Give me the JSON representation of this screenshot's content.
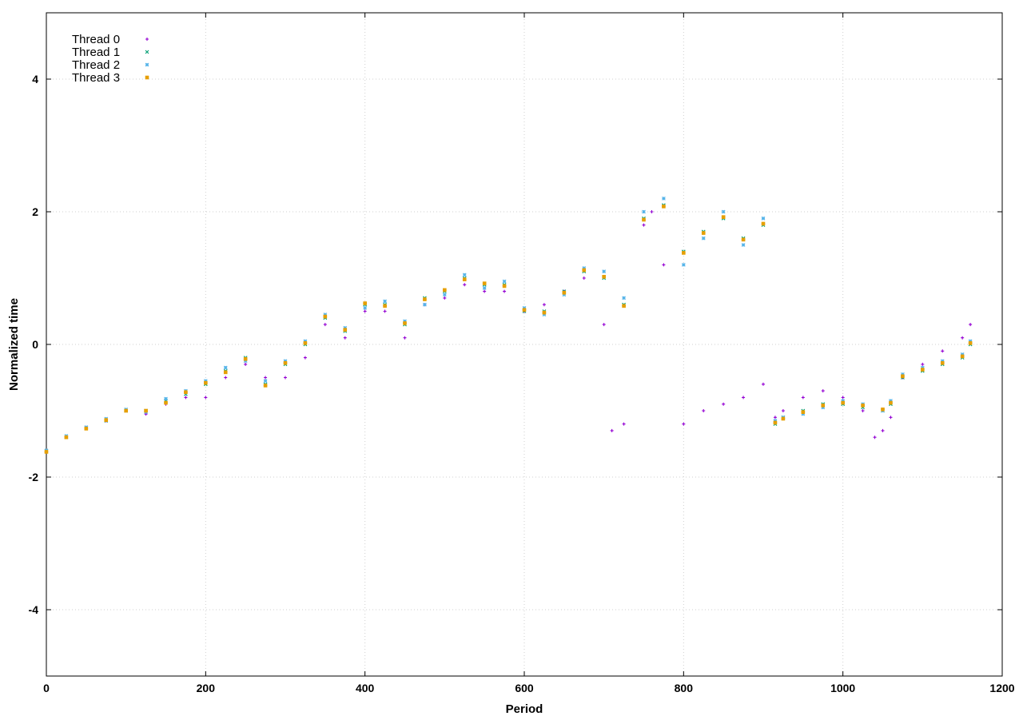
{
  "chart_data": {
    "type": "scatter",
    "xlabel": "Period",
    "ylabel": "Normalized time",
    "xlim": [
      0,
      1200
    ],
    "ylim": [
      -5,
      5
    ],
    "x_ticks": [
      0,
      200,
      400,
      600,
      800,
      1000,
      1200
    ],
    "y_ticks": [
      -4,
      -2,
      0,
      2,
      4
    ],
    "x_tick_labels": [
      "0",
      "200",
      "400",
      "600",
      "800",
      "1000",
      "1200"
    ],
    "y_tick_labels": [
      "-4",
      "-2",
      "0",
      "2",
      "4"
    ],
    "grid": true,
    "legend_position": "top-left",
    "series": [
      {
        "name": "Thread 0",
        "color": "#9400d3",
        "marker": "plus",
        "x": [
          0,
          25,
          50,
          75,
          100,
          125,
          150,
          175,
          200,
          225,
          250,
          275,
          300,
          325,
          350,
          375,
          400,
          425,
          450,
          475,
          500,
          525,
          550,
          575,
          600,
          625,
          650,
          675,
          700,
          710,
          725,
          750,
          760,
          775,
          800,
          825,
          850,
          875,
          900,
          915,
          925,
          950,
          975,
          1000,
          1025,
          1040,
          1050,
          1060,
          1075,
          1100,
          1125,
          1150,
          1160
        ],
        "y": [
          -1.6,
          -1.4,
          -1.25,
          -1.15,
          -1.0,
          -1.05,
          -0.9,
          -0.8,
          -0.8,
          -0.5,
          -0.3,
          -0.5,
          -0.5,
          -0.2,
          0.3,
          0.1,
          0.5,
          0.5,
          0.1,
          0.6,
          0.7,
          0.9,
          0.8,
          0.8,
          0.5,
          0.6,
          0.8,
          1.0,
          0.3,
          -1.3,
          -1.2,
          1.8,
          2.0,
          1.2,
          -1.2,
          -1.0,
          -0.9,
          -0.8,
          -0.6,
          -1.1,
          -1.0,
          -0.8,
          -0.7,
          -0.8,
          -1.0,
          -1.4,
          -1.3,
          -1.1,
          -0.5,
          -0.3,
          -0.1,
          0.1,
          0.3
        ]
      },
      {
        "name": "Thread 1",
        "color": "#009e73",
        "marker": "cross",
        "x": [
          0,
          25,
          50,
          75,
          100,
          125,
          150,
          175,
          200,
          225,
          250,
          275,
          300,
          325,
          350,
          375,
          400,
          425,
          450,
          475,
          500,
          525,
          550,
          575,
          600,
          625,
          650,
          675,
          700,
          725,
          750,
          775,
          800,
          825,
          850,
          875,
          900,
          915,
          925,
          950,
          975,
          1000,
          1025,
          1050,
          1060,
          1075,
          1100,
          1125,
          1150,
          1160
        ],
        "y": [
          -1.6,
          -1.4,
          -1.25,
          -1.15,
          -1.0,
          -1.0,
          -0.85,
          -0.75,
          -0.6,
          -0.4,
          -0.2,
          -0.6,
          -0.3,
          0.0,
          0.4,
          0.2,
          0.6,
          0.6,
          0.3,
          0.7,
          0.8,
          1.0,
          0.9,
          0.9,
          0.5,
          0.5,
          0.8,
          1.1,
          1.0,
          0.6,
          1.9,
          2.1,
          1.4,
          1.7,
          1.9,
          1.6,
          1.8,
          -1.2,
          -1.1,
          -1.0,
          -0.9,
          -0.9,
          -0.95,
          -1.0,
          -0.9,
          -0.5,
          -0.4,
          -0.3,
          -0.2,
          0.0
        ]
      },
      {
        "name": "Thread 2",
        "color": "#56b4e9",
        "marker": "asterisk",
        "x": [
          0,
          25,
          50,
          75,
          100,
          125,
          150,
          175,
          200,
          225,
          250,
          275,
          300,
          325,
          350,
          375,
          400,
          425,
          450,
          475,
          500,
          525,
          550,
          575,
          600,
          625,
          650,
          675,
          700,
          725,
          750,
          775,
          800,
          825,
          850,
          875,
          900,
          915,
          925,
          950,
          975,
          1000,
          1025,
          1050,
          1060,
          1075,
          1100,
          1125,
          1150,
          1160
        ],
        "y": [
          -1.6,
          -1.38,
          -1.25,
          -1.12,
          -0.98,
          -1.02,
          -0.82,
          -0.7,
          -0.55,
          -0.35,
          -0.25,
          -0.55,
          -0.25,
          0.05,
          0.45,
          0.25,
          0.55,
          0.65,
          0.35,
          0.6,
          0.75,
          1.05,
          0.85,
          0.95,
          0.55,
          0.45,
          0.75,
          1.15,
          1.1,
          0.7,
          2.0,
          2.2,
          1.2,
          1.6,
          2.0,
          1.5,
          1.9,
          -1.15,
          -1.1,
          -1.05,
          -0.95,
          -0.85,
          -0.9,
          -1.0,
          -0.85,
          -0.45,
          -0.35,
          -0.25,
          -0.15,
          0.05
        ]
      },
      {
        "name": "Thread 3",
        "color": "#e69f00",
        "marker": "box",
        "x": [
          0,
          25,
          50,
          75,
          100,
          125,
          150,
          175,
          200,
          225,
          250,
          275,
          300,
          325,
          350,
          375,
          400,
          425,
          450,
          475,
          500,
          525,
          550,
          575,
          600,
          625,
          650,
          675,
          700,
          725,
          750,
          775,
          800,
          825,
          850,
          875,
          900,
          915,
          925,
          950,
          975,
          1000,
          1025,
          1050,
          1060,
          1075,
          1100,
          1125,
          1150,
          1160
        ],
        "y": [
          -1.62,
          -1.4,
          -1.27,
          -1.14,
          -1.0,
          -1.0,
          -0.88,
          -0.72,
          -0.58,
          -0.42,
          -0.22,
          -0.62,
          -0.28,
          0.02,
          0.42,
          0.22,
          0.62,
          0.58,
          0.32,
          0.68,
          0.82,
          0.98,
          0.92,
          0.88,
          0.52,
          0.48,
          0.78,
          1.12,
          1.02,
          0.58,
          1.88,
          2.08,
          1.38,
          1.68,
          1.92,
          1.58,
          1.82,
          -1.18,
          -1.12,
          -1.02,
          -0.92,
          -0.88,
          -0.92,
          -0.98,
          -0.88,
          -0.48,
          -0.38,
          -0.28,
          -0.18,
          0.02
        ]
      }
    ]
  }
}
